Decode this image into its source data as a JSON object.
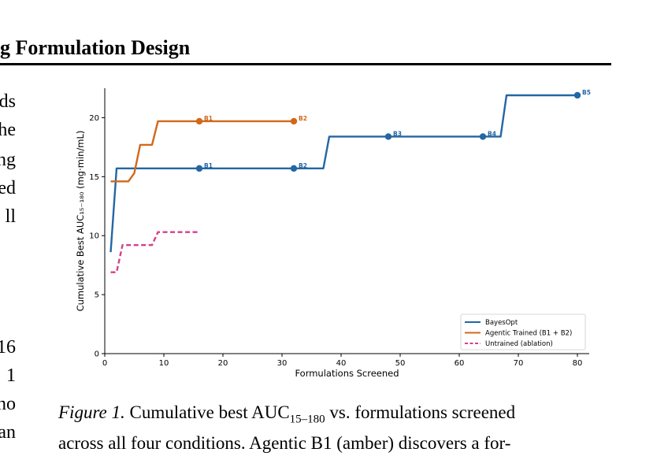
{
  "section_title": "g Formulation Design",
  "left_fragments": [
    "ds",
    "he",
    "ng",
    "ed",
    "ll",
    "16",
    "1",
    "no",
    "an"
  ],
  "caption": {
    "fig_label": "Figure 1.",
    "line1": " Cumulative best AUC",
    "line1_sub": "15–180",
    "line1_rest": " vs. formulations screened",
    "line2": "across all four conditions.  Agentic B1 (amber) discovers a for-"
  },
  "chart_data": {
    "type": "line",
    "xlabel": "Formulations Screened",
    "ylabel": "Cumulative Best AUC₁₅₋₁₈₀ (mg·min/mL)",
    "xlim": [
      0,
      82
    ],
    "ylim": [
      0,
      22.5
    ],
    "xticks": [
      0,
      10,
      20,
      30,
      40,
      50,
      60,
      70,
      80
    ],
    "yticks": [
      0,
      5,
      10,
      15,
      20
    ],
    "grid": false,
    "legend_position": "lower-right",
    "series": [
      {
        "name": "BayesOpt",
        "color": "#2466a4",
        "dash": "solid",
        "points": [
          [
            1,
            8.6
          ],
          [
            2,
            15.7
          ],
          [
            37,
            15.7
          ],
          [
            38,
            18.4
          ],
          [
            67,
            18.4
          ],
          [
            68,
            21.9
          ],
          [
            80,
            21.9
          ]
        ],
        "markers": [
          {
            "x": 16,
            "y": 15.7,
            "label": "B1"
          },
          {
            "x": 32,
            "y": 15.7,
            "label": "B2"
          },
          {
            "x": 48,
            "y": 18.4,
            "label": "B3"
          },
          {
            "x": 64,
            "y": 18.4,
            "label": "B4"
          },
          {
            "x": 80,
            "y": 21.9,
            "label": "B5"
          }
        ]
      },
      {
        "name": "Agentic Trained (B1 + B2)",
        "color": "#d2681b",
        "dash": "solid",
        "points": [
          [
            1,
            14.6
          ],
          [
            4,
            14.6
          ],
          [
            5,
            15.3
          ],
          [
            6,
            17.7
          ],
          [
            8,
            17.7
          ],
          [
            9,
            19.7
          ],
          [
            32,
            19.7
          ]
        ],
        "markers": [
          {
            "x": 16,
            "y": 19.7,
            "label": "B1"
          },
          {
            "x": 32,
            "y": 19.7,
            "label": "B2"
          }
        ]
      },
      {
        "name": "Untrained (ablation)",
        "color": "#d63f8c",
        "dash": "dashed",
        "points": [
          [
            1,
            6.9
          ],
          [
            2,
            6.9
          ],
          [
            3,
            9.2
          ],
          [
            8,
            9.2
          ],
          [
            9,
            10.3
          ],
          [
            16,
            10.3
          ]
        ],
        "markers": []
      }
    ]
  }
}
